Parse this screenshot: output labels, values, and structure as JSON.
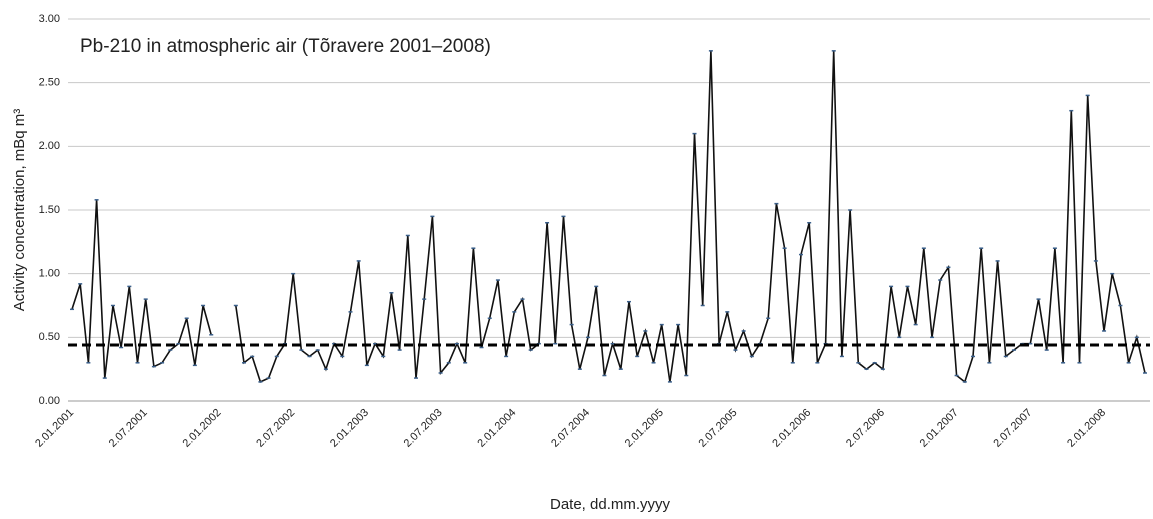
{
  "chart_data": {
    "type": "line",
    "title": "Pb-210 in atmospheric air (Tõravere 2001–2008)",
    "x_label": "Date, dd.mm.yyyy",
    "y_label": "Activity concentration, mBq m³",
    "categories": [
      "2.01.2001",
      null,
      null,
      null,
      null,
      null,
      null,
      null,
      null,
      "2.07.2001",
      null,
      null,
      null,
      null,
      null,
      null,
      null,
      null,
      "2.01.2002",
      null,
      null,
      null,
      null,
      null,
      null,
      null,
      null,
      "2.07.2002",
      null,
      null,
      null,
      null,
      null,
      null,
      null,
      null,
      "2.01.2003",
      null,
      null,
      null,
      null,
      null,
      null,
      null,
      null,
      "2.07.2003",
      null,
      null,
      null,
      null,
      null,
      null,
      null,
      null,
      "2.01.2004",
      null,
      null,
      null,
      null,
      null,
      null,
      null,
      null,
      "2.07.2004",
      null,
      null,
      null,
      null,
      null,
      null,
      null,
      null,
      "2.01.2005",
      null,
      null,
      null,
      null,
      null,
      null,
      null,
      null,
      "2.07.2005",
      null,
      null,
      null,
      null,
      null,
      null,
      null,
      null,
      "2.01.2006",
      null,
      null,
      null,
      null,
      null,
      null,
      null,
      null,
      "2.07.2006",
      null,
      null,
      null,
      null,
      null,
      null,
      null,
      null,
      "2.01.2007",
      null,
      null,
      null,
      null,
      null,
      null,
      null,
      null,
      "2.07.2007",
      null,
      null,
      null,
      null,
      null,
      null,
      null,
      null,
      "2.01.2008",
      null,
      null,
      null,
      null,
      null
    ],
    "series": [
      {
        "name": "Pb-210",
        "color": "#111111",
        "values": [
          0.72,
          0.92,
          0.3,
          1.58,
          0.18,
          0.75,
          0.42,
          0.9,
          0.3,
          0.8,
          0.27,
          0.3,
          0.4,
          0.45,
          0.65,
          0.28,
          0.75,
          0.52,
          null,
          null,
          0.75,
          0.3,
          0.35,
          0.15,
          0.18,
          0.35,
          0.45,
          1.0,
          0.4,
          0.35,
          0.4,
          0.25,
          0.45,
          0.35,
          0.7,
          1.1,
          0.28,
          0.45,
          0.35,
          0.85,
          0.4,
          1.3,
          0.18,
          0.8,
          1.45,
          0.22,
          0.3,
          0.45,
          0.3,
          1.2,
          0.42,
          0.65,
          0.95,
          0.35,
          0.7,
          0.8,
          0.4,
          0.45,
          1.4,
          0.45,
          1.45,
          0.6,
          0.25,
          0.5,
          0.9,
          0.2,
          0.45,
          0.25,
          0.78,
          0.35,
          0.55,
          0.3,
          0.6,
          0.15,
          0.6,
          0.2,
          2.1,
          0.75,
          2.75,
          0.45,
          0.7,
          0.4,
          0.55,
          0.35,
          0.45,
          0.65,
          1.55,
          1.2,
          0.3,
          1.15,
          1.4,
          0.3,
          0.45,
          2.75,
          0.35,
          1.5,
          0.3,
          0.25,
          0.3,
          0.25,
          0.9,
          0.5,
          0.9,
          0.6,
          1.2,
          0.5,
          0.95,
          1.05,
          0.2,
          0.15,
          0.35,
          1.2,
          0.3,
          1.1,
          0.35,
          0.4,
          0.45,
          0.45,
          0.8,
          0.4,
          1.2,
          0.3,
          2.28,
          0.3,
          2.4,
          1.1,
          0.55,
          1.0,
          0.75,
          0.3,
          0.5,
          0.22
        ]
      }
    ],
    "reference_line": 0.44,
    "ylim": [
      0,
      3
    ],
    "yticks": [
      {
        "value": 0,
        "label": "0.00"
      },
      {
        "value": 0.5,
        "label": "0.50"
      },
      {
        "value": 1,
        "label": "1.00"
      },
      {
        "value": 1.5,
        "label": "1.50"
      },
      {
        "value": 2,
        "label": "2.00"
      },
      {
        "value": 2.5,
        "label": "2.50"
      },
      {
        "value": 3,
        "label": "3.00"
      }
    ],
    "grid": true
  }
}
